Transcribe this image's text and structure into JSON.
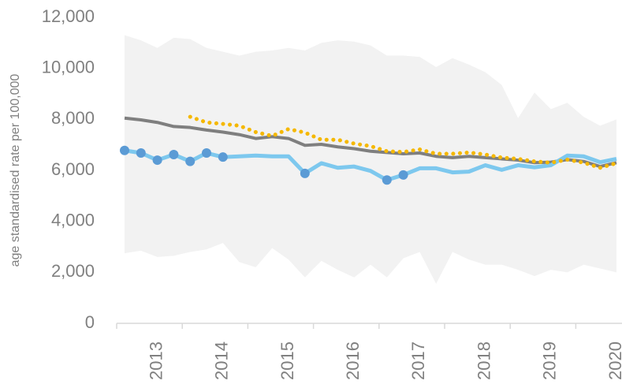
{
  "chart_data": {
    "type": "line",
    "y_label": "age standardised rate per 100,000",
    "categories": [
      null,
      null,
      "2013",
      null,
      null,
      null,
      "2014",
      null,
      null,
      null,
      "2015",
      null,
      null,
      null,
      "2016",
      null,
      null,
      null,
      "2017",
      null,
      null,
      null,
      "2018",
      null,
      null,
      null,
      "2019",
      null,
      null,
      null,
      "2020"
    ],
    "ylim": [
      0,
      12000
    ],
    "yticks": [
      0,
      {
        "value": 2000,
        "label": "2,000"
      },
      {
        "value": 4000,
        "label": "4,000"
      },
      {
        "value": 6000,
        "label": "6,000"
      },
      {
        "value": 8000,
        "label": "8,000"
      },
      {
        "value": 10000,
        "label": "10,000"
      },
      {
        "value": 12000,
        "label": "12,000"
      }
    ],
    "grid": false,
    "band": {
      "color": "#f2f2f2",
      "upper": [
        11300,
        11100,
        10800,
        11200,
        11150,
        10800,
        10650,
        10500,
        10650,
        10700,
        10800,
        10700,
        11000,
        11100,
        11050,
        10900,
        10500,
        10500,
        10450,
        10050,
        10400,
        10150,
        9850,
        9350,
        8050,
        9050,
        8400,
        8650,
        8100,
        7750,
        8000
      ],
      "lower": [
        2750,
        2850,
        2600,
        2650,
        2800,
        2900,
        3150,
        2400,
        2200,
        2950,
        2500,
        1800,
        2450,
        2100,
        1800,
        2300,
        1800,
        2550,
        2800,
        1550,
        2800,
        2500,
        2300,
        2300,
        2100,
        1850,
        2100,
        2000,
        2300,
        2150,
        2000
      ]
    },
    "series": [
      {
        "color": "#7f7f7f",
        "style": "solid",
        "width": 4,
        "values": [
          8050,
          7980,
          7880,
          7720,
          7680,
          7580,
          7500,
          7400,
          7250,
          7320,
          7250,
          6980,
          7020,
          6920,
          6850,
          6750,
          6700,
          6650,
          6680,
          6550,
          6500,
          6550,
          6500,
          6450,
          6400,
          6300,
          6320,
          6420,
          6350,
          6150,
          6300
        ]
      },
      {
        "color": "#7dc8ee",
        "style": "solid",
        "width": 5,
        "values": [
          6780,
          6680,
          6400,
          6620,
          6350,
          6680,
          6520,
          6550,
          6580,
          6550,
          6550,
          5880,
          6280,
          6100,
          6150,
          5980,
          5620,
          5820,
          6080,
          6080,
          5920,
          5950,
          6200,
          6020,
          6200,
          6120,
          6200,
          6580,
          6550,
          6320,
          6450
        ]
      },
      {
        "color": "#f5b800",
        "style": "dotted",
        "width": 5,
        "values": [
          null,
          null,
          null,
          null,
          8100,
          7880,
          7820,
          7750,
          7500,
          7350,
          7620,
          7480,
          7200,
          7200,
          7050,
          6950,
          6750,
          6720,
          6820,
          6650,
          6650,
          6700,
          6620,
          6500,
          6450,
          6350,
          6300,
          6420,
          6300,
          6100,
          6280
        ]
      },
      {
        "color": "#5b9bd5",
        "style": "markers",
        "values": [
          6780,
          6680,
          6400,
          6620,
          6350,
          6680,
          6520,
          null,
          null,
          null,
          null,
          5880,
          null,
          null,
          null,
          null,
          5620,
          5820,
          null,
          null,
          null,
          null,
          null,
          null,
          null,
          null,
          null,
          null,
          null,
          null,
          null
        ]
      }
    ]
  }
}
